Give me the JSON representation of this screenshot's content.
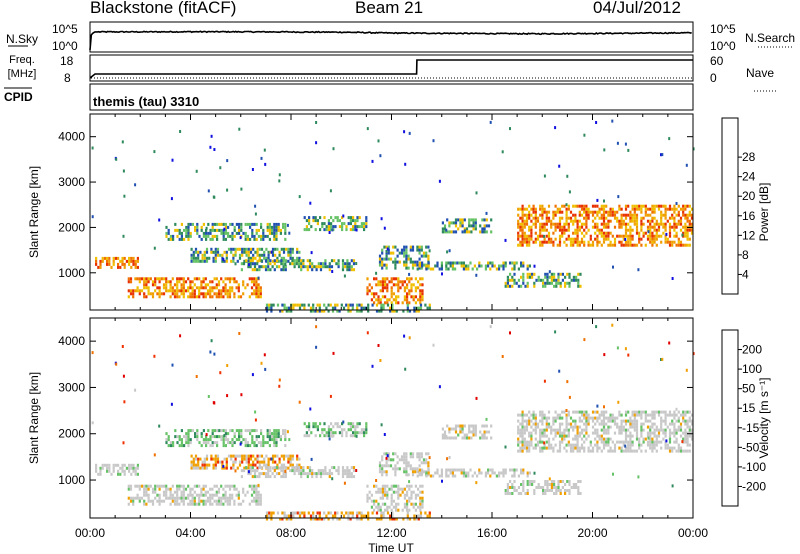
{
  "header": {
    "station": "Blackstone (fitACF)",
    "beam": "Beam 21",
    "date": "04/Jul/2012"
  },
  "status_panel": {
    "left_top_label": "N.Sky",
    "left_top_ticks": [
      "10^5",
      "10^0"
    ],
    "right_top_label": "N.Search",
    "right_top_ticks": [
      "10^5",
      "10^0"
    ],
    "freq_label": "Freq.",
    "freq_unit": "[MHz]",
    "freq_ticks": [
      "18",
      "8"
    ],
    "nave_label": "Nave",
    "nave_ticks": [
      "60",
      "0"
    ],
    "cpid_label": "CPID",
    "cpid_value": "themis (tau) 3310"
  },
  "axes": {
    "ylabel": "Slant Range [km]",
    "xlabel": "Time UT",
    "yticks": [
      "1000",
      "2000",
      "3000",
      "4000"
    ],
    "xticks": [
      "00:00",
      "04:00",
      "08:00",
      "12:00",
      "16:00",
      "20:00",
      "00:00"
    ]
  },
  "colorbars": {
    "power": {
      "label": "Power [dB]",
      "ticks": [
        "4",
        "8",
        "12",
        "16",
        "20",
        "24",
        "28"
      ],
      "colors": [
        "#1010e0",
        "#2050b0",
        "#2e8a5c",
        "#66c266",
        "#f0c000",
        "#f0a000",
        "#f07000",
        "#e83000",
        "#e00000"
      ]
    },
    "velocity": {
      "label": "Velocity [m s⁻¹]",
      "ticks": [
        "200",
        "100",
        "50",
        "15",
        "-15",
        "-50",
        "-100",
        "-200"
      ],
      "colors": [
        "#1010e0",
        "#2050b0",
        "#2e8a5c",
        "#66c266",
        "#c8c8c8",
        "#f0a000",
        "#f07000",
        "#f03000",
        "#e00000"
      ]
    }
  },
  "chart_data": [
    {
      "type": "line",
      "title": "N.Sky / N.Search",
      "x": [
        0,
        0.2,
        2,
        4,
        6,
        8,
        10,
        12,
        14,
        16,
        18,
        20,
        22,
        24
      ],
      "series": [
        {
          "name": "N.Sky",
          "values": [
            1,
            3000,
            3000,
            3200,
            3100,
            2900,
            2600,
            1800,
            1600,
            1400,
            1300,
            1500,
            1700,
            2000
          ]
        }
      ]
    },
    {
      "type": "line",
      "title": "Freq. / Nave",
      "x": [
        0,
        0.2,
        13,
        13.01,
        24
      ],
      "series": [
        {
          "name": "Freq.",
          "values": [
            8,
            10,
            10,
            17,
            17
          ]
        },
        {
          "name": "Nave",
          "values": [
            0,
            0,
            0,
            0,
            0
          ]
        }
      ]
    },
    {
      "type": "heatmap",
      "title": "Power",
      "xlabel": "Time UT",
      "ylabel": "Slant Range [km]",
      "xlim": [
        0,
        24
      ],
      "ylim": [
        180,
        4500
      ],
      "features": [
        {
          "t": [
            0.2,
            1.9
          ],
          "r": [
            1100,
            1350
          ],
          "level": "high"
        },
        {
          "t": [
            1.5,
            6.8
          ],
          "r": [
            500,
            900
          ],
          "level": "high"
        },
        {
          "t": [
            3.0,
            7.8
          ],
          "r": [
            1750,
            2100
          ],
          "level": "mid"
        },
        {
          "t": [
            4.0,
            8.3
          ],
          "r": [
            1250,
            1550
          ],
          "level": "mid"
        },
        {
          "t": [
            6.0,
            10.5
          ],
          "r": [
            1050,
            1300
          ],
          "level": "mid"
        },
        {
          "t": [
            8.5,
            11.0
          ],
          "r": [
            1950,
            2250
          ],
          "level": "mid"
        },
        {
          "t": [
            11.0,
            13.2
          ],
          "r": [
            350,
            900
          ],
          "level": "high"
        },
        {
          "t": [
            11.5,
            13.5
          ],
          "r": [
            1100,
            1600
          ],
          "level": "mid"
        },
        {
          "t": [
            13.0,
            17.5
          ],
          "r": [
            1100,
            1250
          ],
          "level": "mid"
        },
        {
          "t": [
            14.0,
            16.0
          ],
          "r": [
            1900,
            2200
          ],
          "level": "mid"
        },
        {
          "t": [
            16.5,
            19.5
          ],
          "r": [
            700,
            1000
          ],
          "level": "mid"
        },
        {
          "t": [
            17.0,
            24.0
          ],
          "r": [
            1600,
            2500
          ],
          "level": "high"
        },
        {
          "t": [
            7.0,
            13.5
          ],
          "r": [
            180,
            320
          ],
          "level": "mid"
        }
      ]
    },
    {
      "type": "heatmap",
      "title": "Velocity",
      "xlabel": "Time UT",
      "ylabel": "Slant Range [km]",
      "xlim": [
        0,
        24
      ],
      "ylim": [
        180,
        4500
      ],
      "features": [
        {
          "t": [
            0.2,
            1.9
          ],
          "r": [
            1100,
            1350
          ],
          "class": "low"
        },
        {
          "t": [
            1.5,
            6.8
          ],
          "r": [
            500,
            900
          ],
          "class": "low"
        },
        {
          "t": [
            3.0,
            7.8
          ],
          "r": [
            1750,
            2100
          ],
          "class": "pos-mid"
        },
        {
          "t": [
            4.0,
            8.3
          ],
          "r": [
            1250,
            1550
          ],
          "class": "neg-mid"
        },
        {
          "t": [
            6.0,
            10.5
          ],
          "r": [
            1050,
            1300
          ],
          "class": "low"
        },
        {
          "t": [
            8.5,
            11.0
          ],
          "r": [
            1950,
            2250
          ],
          "class": "pos-mid"
        },
        {
          "t": [
            11.0,
            13.2
          ],
          "r": [
            350,
            900
          ],
          "class": "low"
        },
        {
          "t": [
            11.5,
            13.5
          ],
          "r": [
            1100,
            1600
          ],
          "class": "low"
        },
        {
          "t": [
            13.0,
            17.5
          ],
          "r": [
            1100,
            1250
          ],
          "class": "low"
        },
        {
          "t": [
            14.0,
            16.0
          ],
          "r": [
            1900,
            2200
          ],
          "class": "low"
        },
        {
          "t": [
            16.5,
            19.5
          ],
          "r": [
            700,
            1000
          ],
          "class": "low"
        },
        {
          "t": [
            17.0,
            24.0
          ],
          "r": [
            1600,
            2500
          ],
          "class": "low"
        },
        {
          "t": [
            7.0,
            13.5
          ],
          "r": [
            180,
            320
          ],
          "class": "neg-mid"
        }
      ]
    }
  ]
}
